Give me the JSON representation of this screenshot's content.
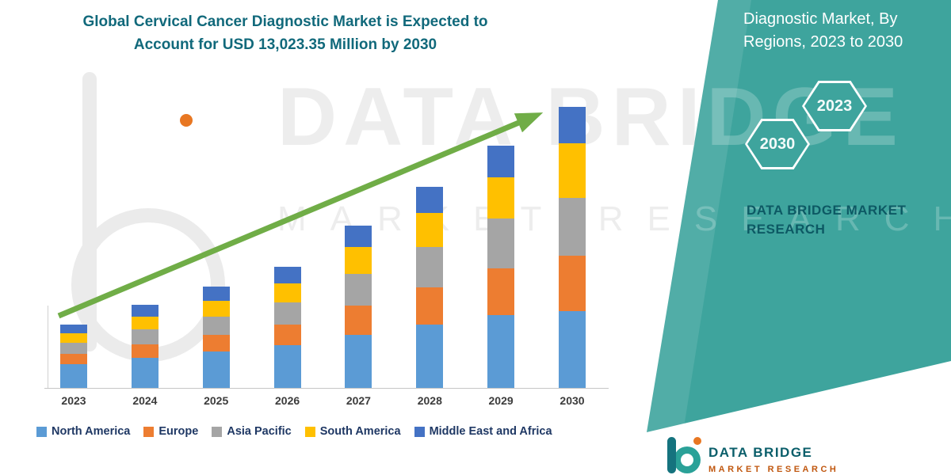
{
  "title": {
    "line1": "Global Cervical Cancer Diagnostic Market is Expected to",
    "line2": "Account for USD 13,023.35 Million by 2030"
  },
  "side_panel": {
    "heading_line1": "Diagnostic Market, By",
    "heading_line2": "Regions, 2023 to 2030",
    "hexagons": [
      {
        "label": "2030"
      },
      {
        "label": "2023"
      }
    ],
    "brand_line1": "DATA BRIDGE MARKET",
    "brand_line2": "RESEARCH"
  },
  "watermark": {
    "line1": "DATA BRIDGE",
    "line2": "MARKET RESEARCH"
  },
  "footer_logo": {
    "name": "DATA BRIDGE",
    "tagline": "MARKET RESEARCH"
  },
  "colors": {
    "panel_teal": "#3EA49D",
    "title_text": "#11697B",
    "brand_text": "#0D5964",
    "legend_text": "#1F3864",
    "arrow_green": "#70AD47",
    "logo_orange": "#E87722",
    "footer_name_text": "#0A5E6A",
    "footer_tagline_text": "#C0570F"
  },
  "chart_data": {
    "type": "bar",
    "stacked": true,
    "title": "Global Cervical Cancer Diagnostic Market is Expected to Account for USD 13,023.35 Million by 2030",
    "value_units": "USD Million (segment values estimated from bar heights; only the 2030 total of 13,023.35 is labeled on the image)",
    "categories": [
      "2023",
      "2024",
      "2025",
      "2026",
      "2027",
      "2028",
      "2029",
      "2030"
    ],
    "series": [
      {
        "name": "North America",
        "color": "#5B9BD5",
        "values": [
          1100,
          1394,
          1687,
          1981,
          2458,
          2934,
          3375,
          3558
        ]
      },
      {
        "name": "Europe",
        "color": "#ED7D31",
        "values": [
          477,
          624,
          770,
          954,
          1357,
          1724,
          2164,
          2568
        ]
      },
      {
        "name": "Asia Pacific",
        "color": "#A5A5A5",
        "values": [
          513,
          697,
          844,
          1027,
          1467,
          1871,
          2311,
          2678
        ]
      },
      {
        "name": "South America",
        "color": "#FFC000",
        "values": [
          440,
          587,
          734,
          880,
          1247,
          1577,
          1907,
          2531
        ]
      },
      {
        "name": "Middle East and Africa",
        "color": "#4472C4",
        "values": [
          400,
          550,
          660,
          770,
          990,
          1209,
          1467,
          1688.35
        ]
      }
    ],
    "totals_estimated": [
      2930,
      3852,
      4695,
      5612,
      7519,
      9315,
      11224,
      13023.35
    ],
    "xlabel": "",
    "ylabel": "",
    "grid": false,
    "legend_position": "bottom",
    "trend_arrow": {
      "present": true,
      "direction": "up",
      "color": "#70AD47"
    }
  }
}
